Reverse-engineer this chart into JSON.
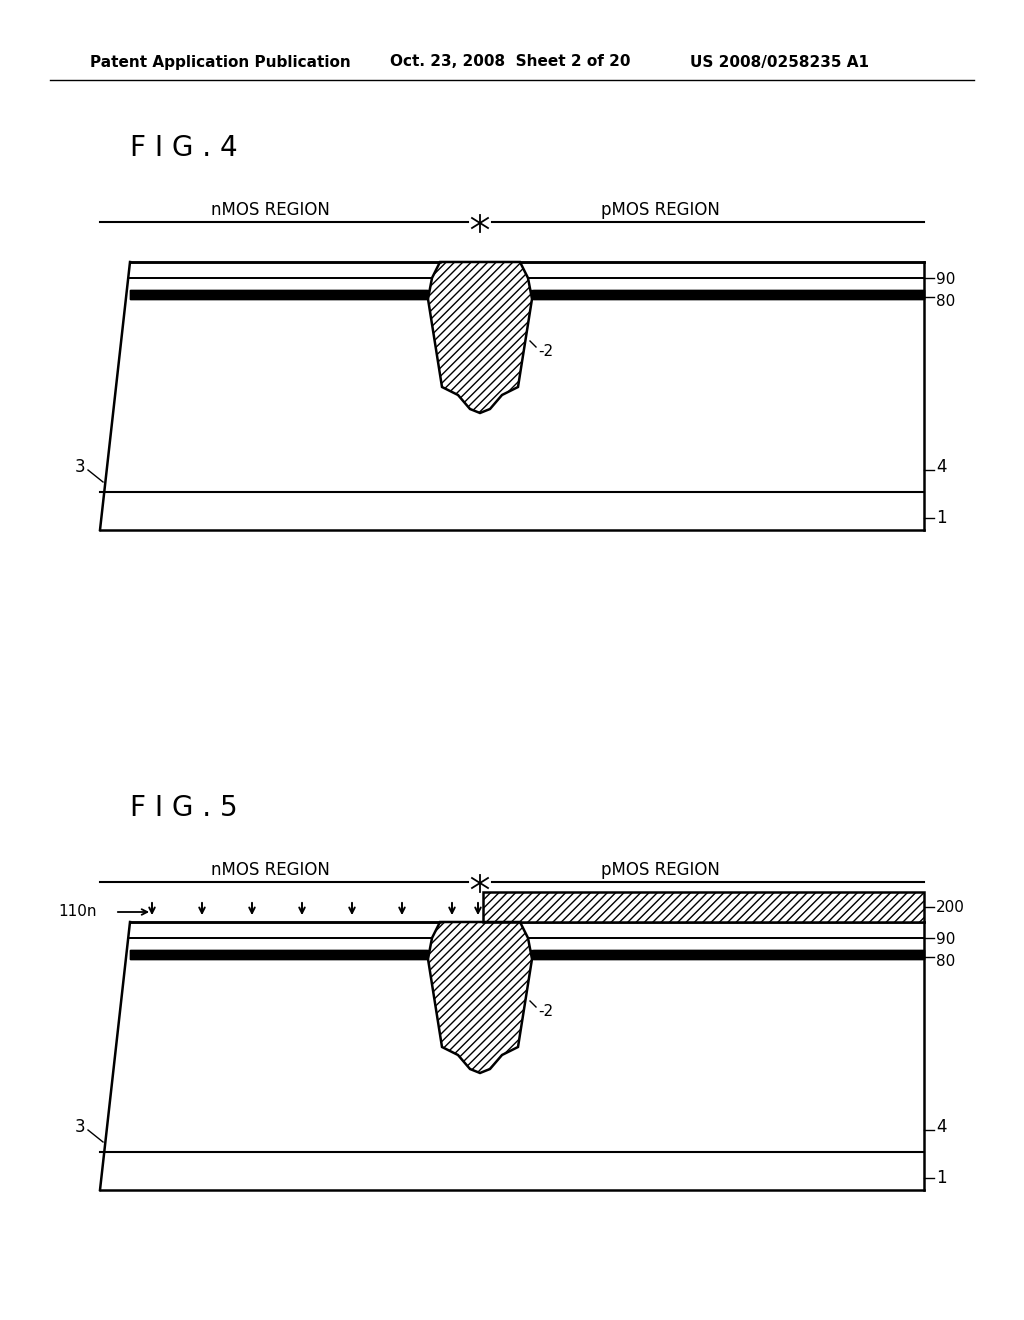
{
  "bg_color": "#ffffff",
  "header_text1": "Patent Application Publication",
  "header_text2": "Oct. 23, 2008  Sheet 2 of 20",
  "header_text3": "US 2008/0258235 A1",
  "fig4_label": "F I G . 4",
  "fig5_label": "F I G . 5",
  "fig4_nmos": "nMOS REGION",
  "fig4_pmos": "pMOS REGION",
  "fig5_nmos": "nMOS REGION",
  "fig5_pmos": "pMOS REGION",
  "label_90": "90",
  "label_80": "80",
  "label_3": "3",
  "label_4": "4",
  "label_1": "1",
  "label_2": "-2",
  "label_200": "200",
  "label_110n": "110n",
  "line_color": "#000000",
  "text_color": "#000000"
}
